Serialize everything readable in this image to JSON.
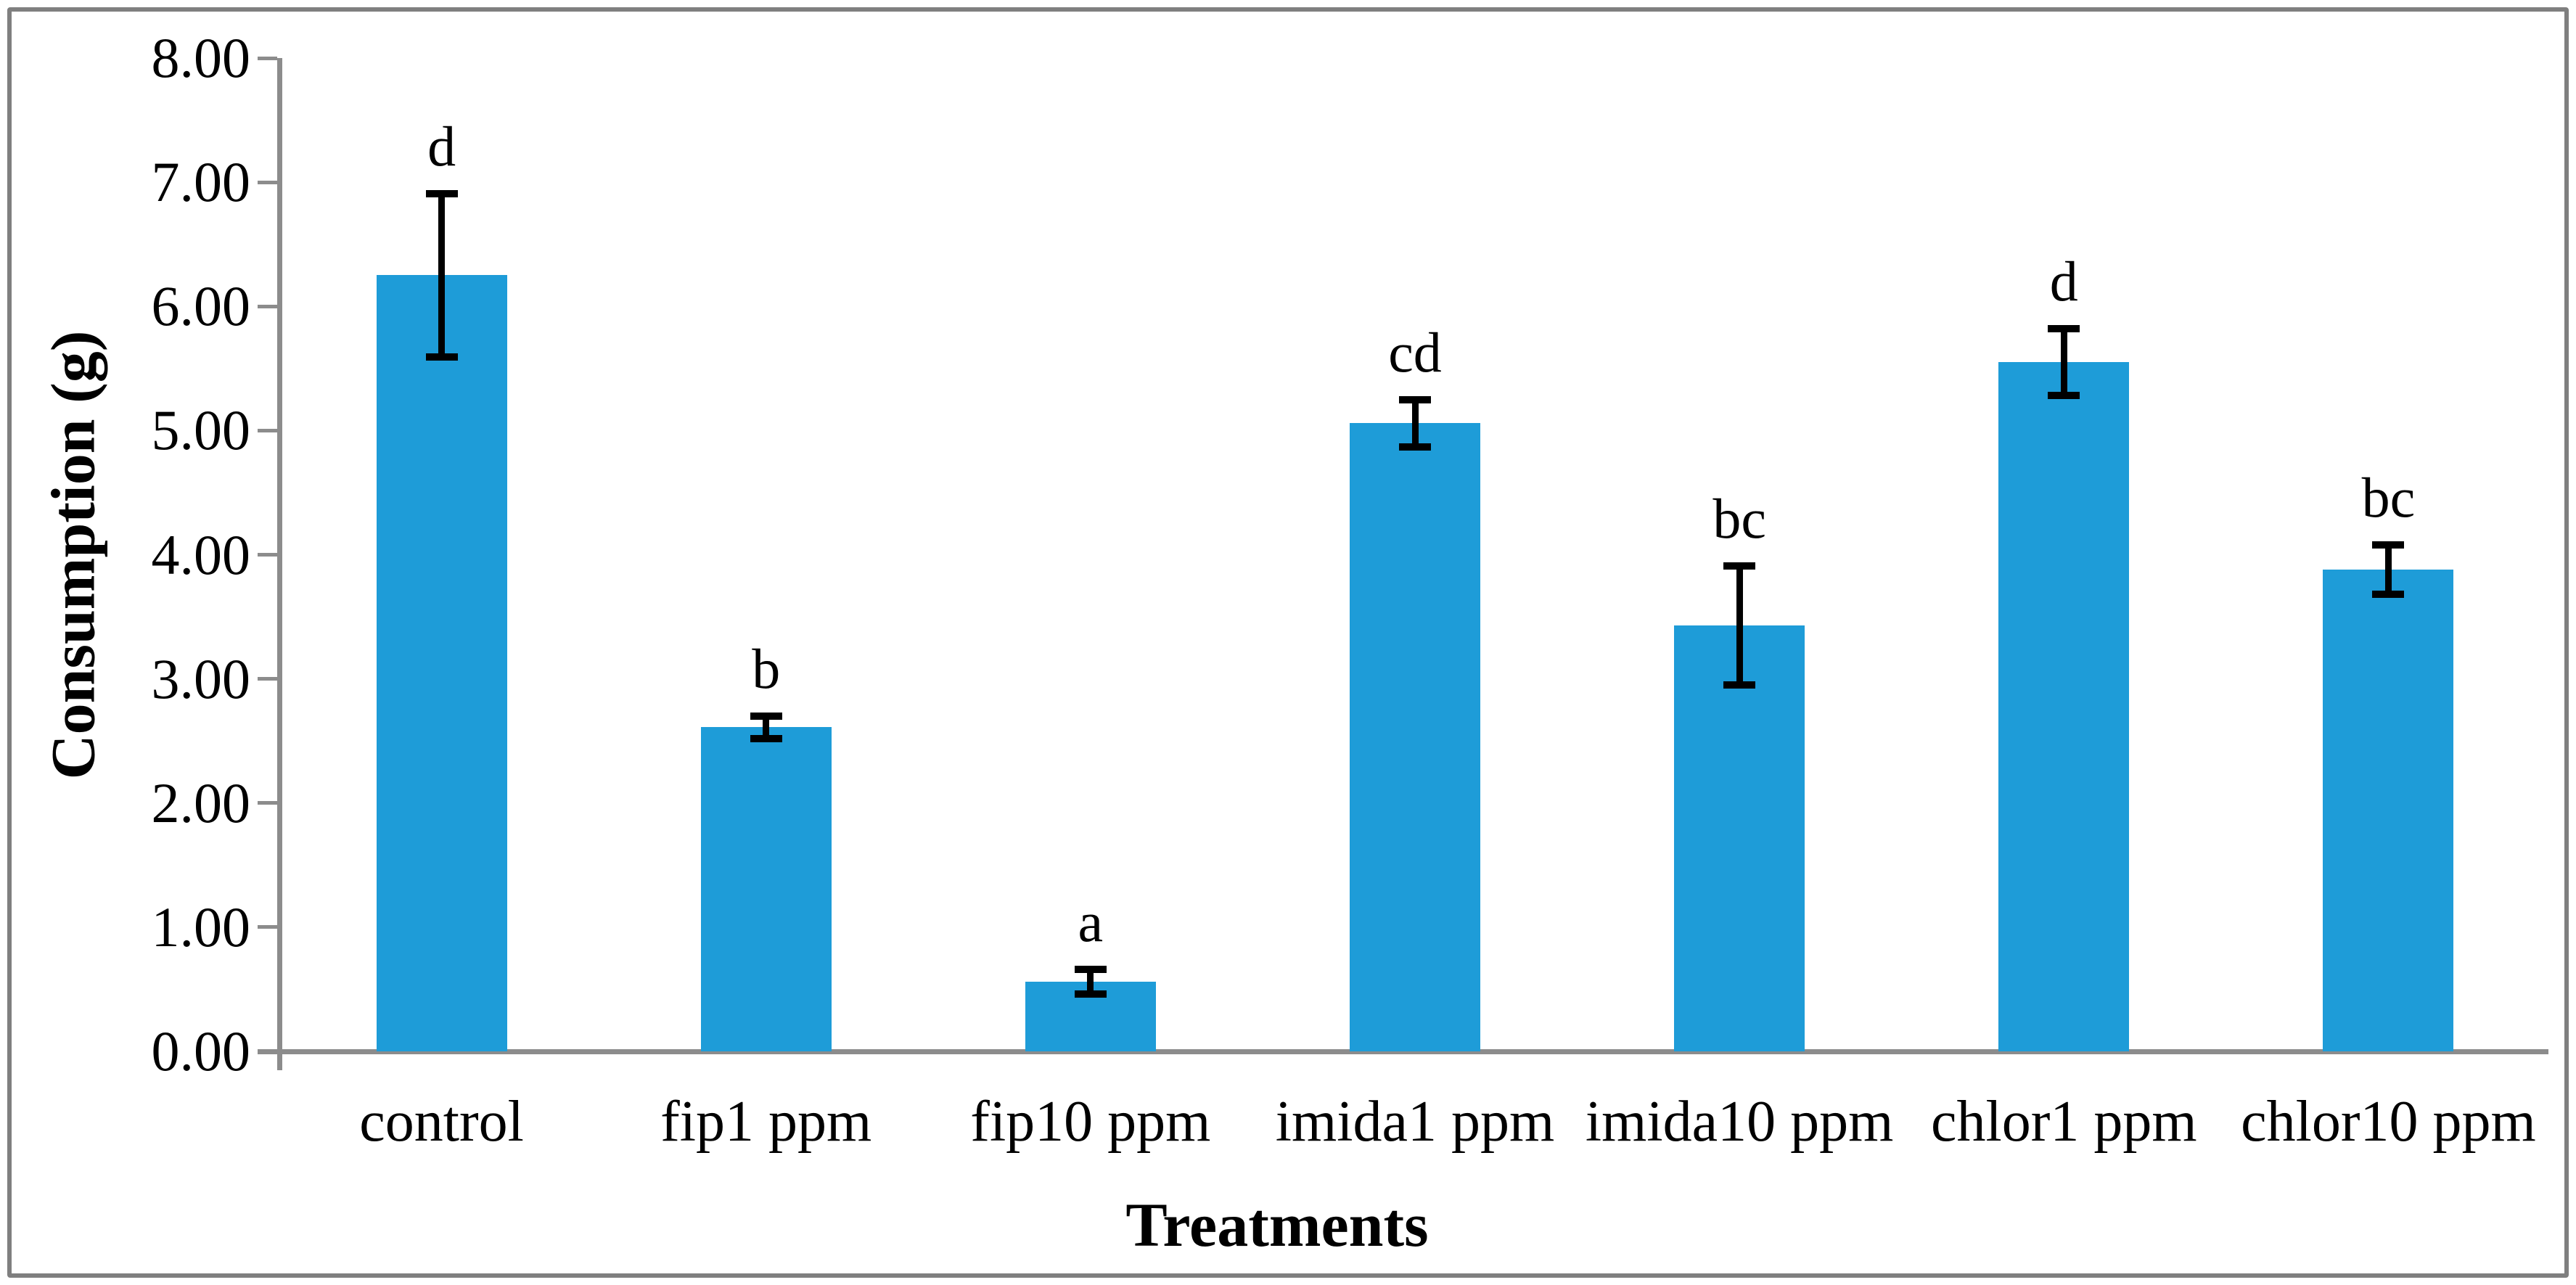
{
  "chart_data": {
    "type": "bar",
    "title": "",
    "xlabel": "Treatments",
    "ylabel": "Consumption (g)",
    "ylim": [
      0,
      8
    ],
    "y_tick_step": 1,
    "y_tick_labels": [
      "8.00",
      "7.00",
      "6.00",
      "5.00",
      "4.00",
      "3.00",
      "2.00",
      "1.00",
      "0.00"
    ],
    "grid": false,
    "legend": "none",
    "bar_color": "#1e9cd8",
    "axis_color": "#8c8c8c",
    "error_bar_color": "#000000",
    "categories": [
      "control",
      "fip1 ppm",
      "fip10 ppm",
      "imida1 ppm",
      "imida10 ppm",
      "chlor1 ppm",
      "chlor10 ppm"
    ],
    "series": [
      {
        "name": "Consumption (g)",
        "values": [
          6.25,
          2.61,
          0.56,
          5.06,
          3.43,
          5.55,
          3.88
        ],
        "error_bars": [
          0.66,
          0.09,
          0.1,
          0.19,
          0.48,
          0.27,
          0.2
        ],
        "significance_letters": [
          "d",
          "b",
          "a",
          "cd",
          "bc",
          "d",
          "bc"
        ]
      }
    ]
  }
}
